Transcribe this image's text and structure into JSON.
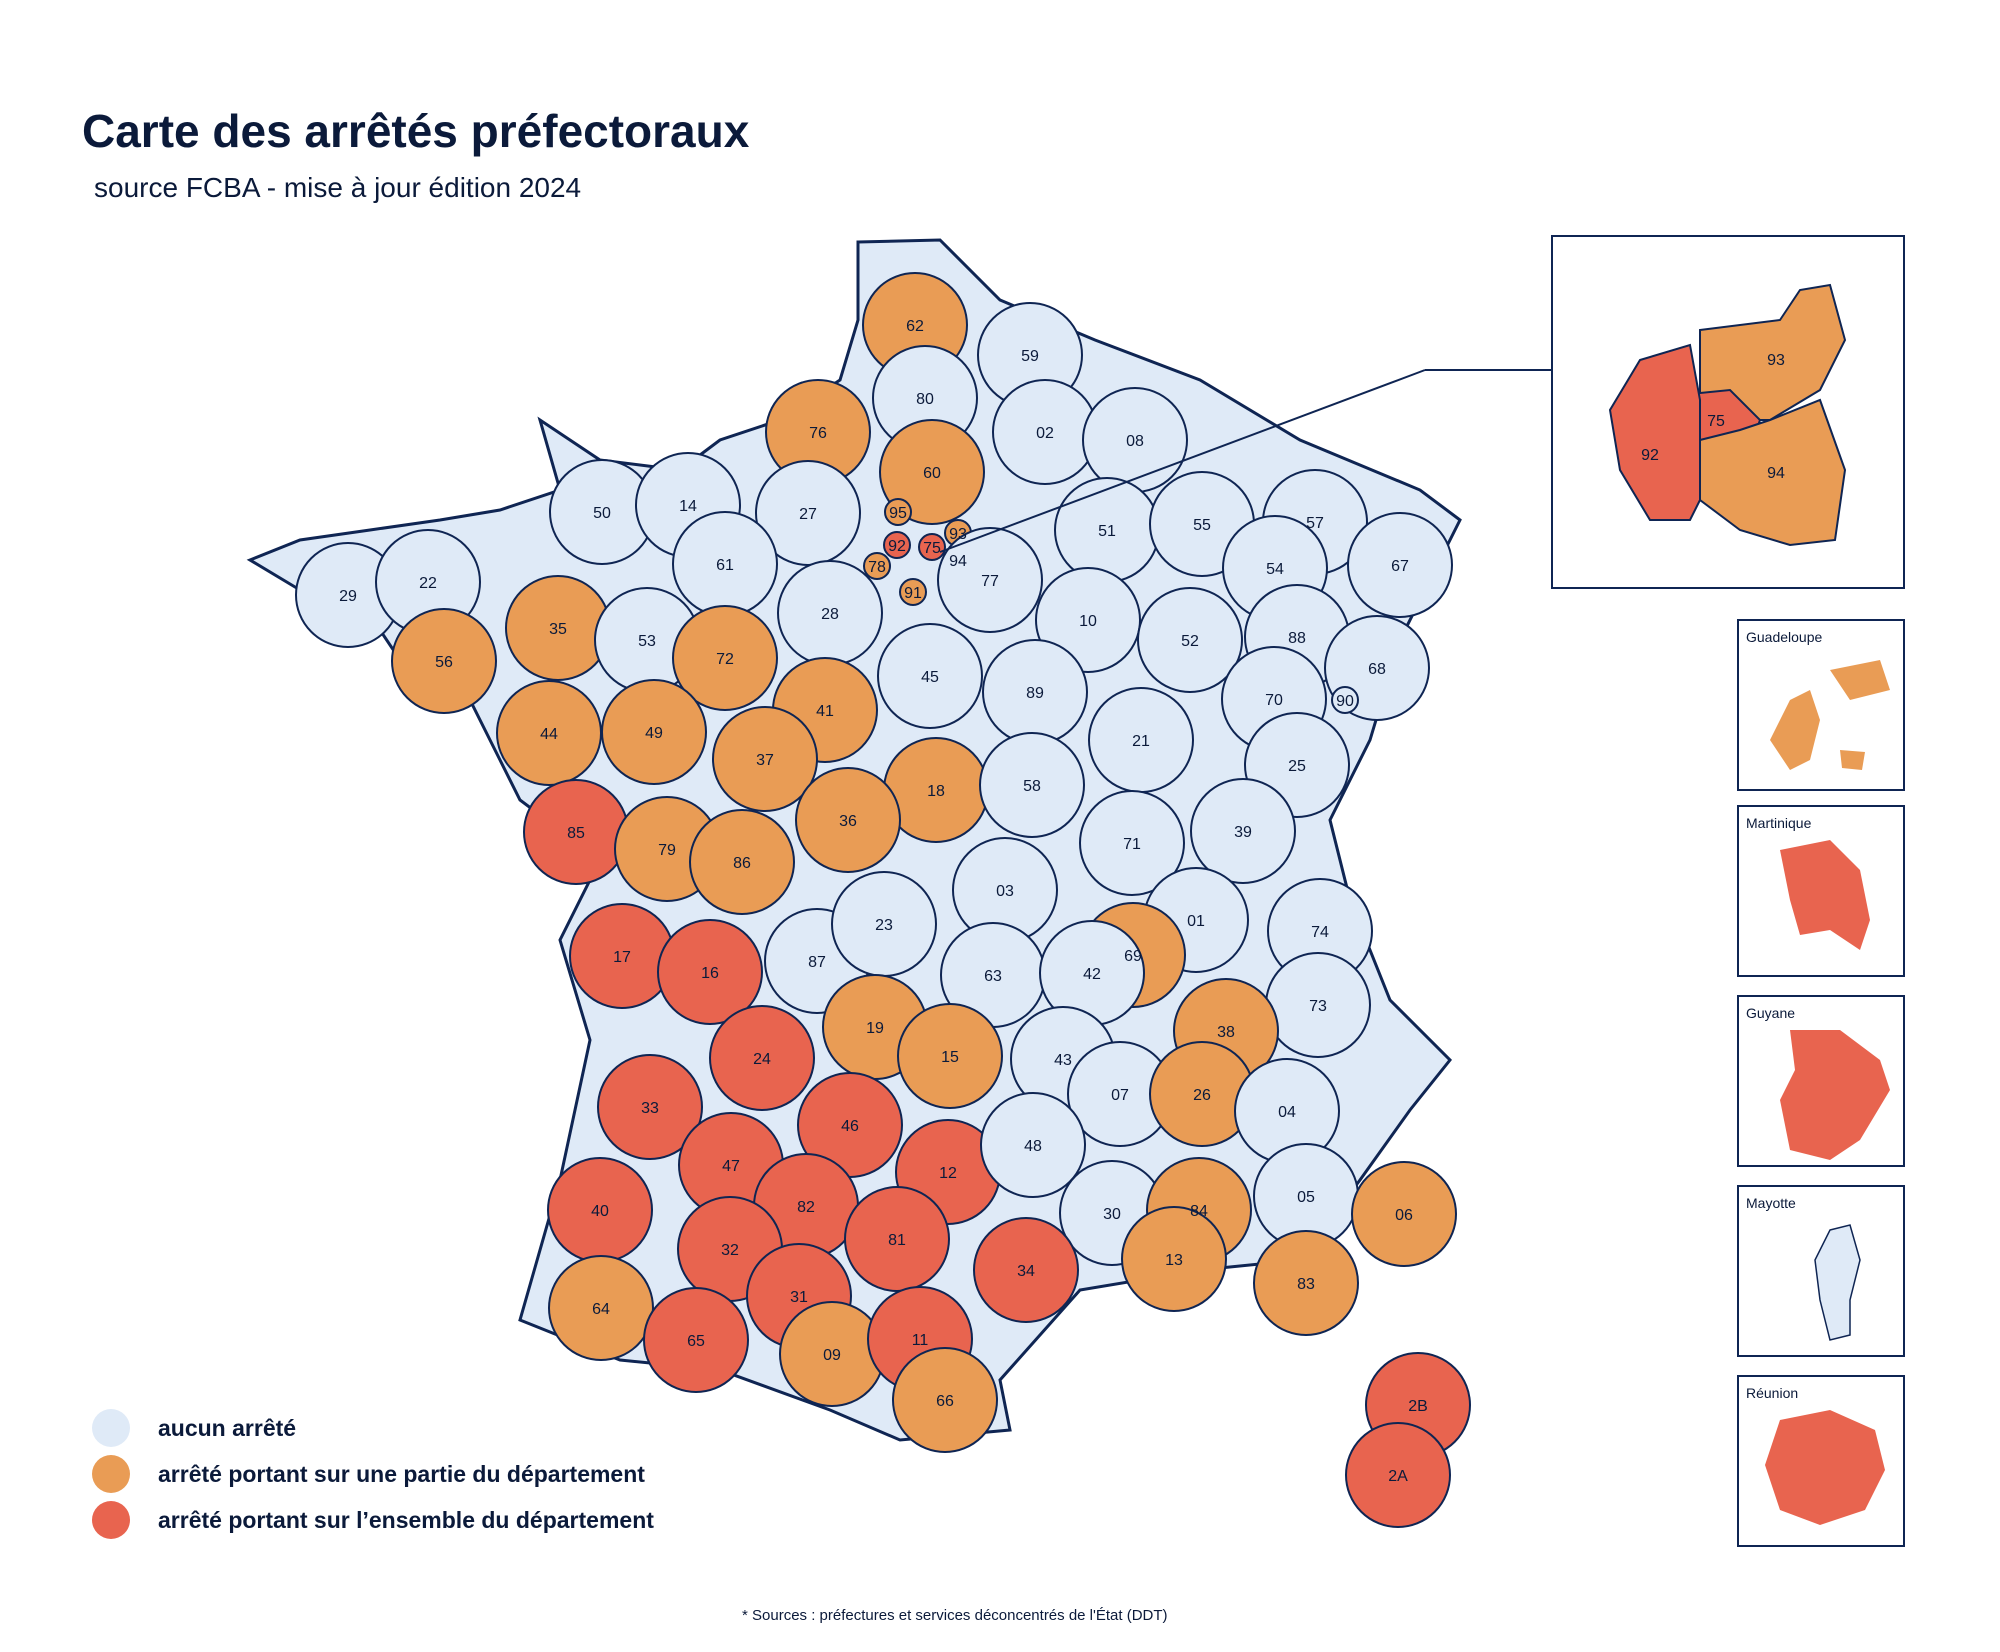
{
  "title": "Carte des arrêtés préfectoraux",
  "subtitle": "source FCBA - mise à jour édition 2024",
  "footnote": "*  Sources : préfectures et services déconcentrés de l'État (DDT)",
  "colors": {
    "none": "#dfeaf7",
    "partial": "#e99c55",
    "full": "#e8644f",
    "border": "#0f2553"
  },
  "legend": [
    {
      "key": "none",
      "label": "aucun arrêté"
    },
    {
      "key": "partial",
      "label": "arrêté portant sur une partie du département"
    },
    {
      "key": "full",
      "label": "arrêté portant sur l’ensemble du département"
    }
  ],
  "departments": [
    {
      "code": "62",
      "status": "partial"
    },
    {
      "code": "59",
      "status": "none"
    },
    {
      "code": "80",
      "status": "none"
    },
    {
      "code": "76",
      "status": "partial"
    },
    {
      "code": "60",
      "status": "partial"
    },
    {
      "code": "02",
      "status": "none"
    },
    {
      "code": "08",
      "status": "none"
    },
    {
      "code": "50",
      "status": "none"
    },
    {
      "code": "14",
      "status": "none"
    },
    {
      "code": "27",
      "status": "none"
    },
    {
      "code": "95",
      "status": "partial"
    },
    {
      "code": "93",
      "status": "partial"
    },
    {
      "code": "92",
      "status": "full"
    },
    {
      "code": "94",
      "status": "partial"
    },
    {
      "code": "75",
      "status": "full"
    },
    {
      "code": "78",
      "status": "partial"
    },
    {
      "code": "91",
      "status": "partial"
    },
    {
      "code": "77",
      "status": "none"
    },
    {
      "code": "51",
      "status": "none"
    },
    {
      "code": "55",
      "status": "none"
    },
    {
      "code": "57",
      "status": "none"
    },
    {
      "code": "54",
      "status": "none"
    },
    {
      "code": "67",
      "status": "none"
    },
    {
      "code": "29",
      "status": "none"
    },
    {
      "code": "22",
      "status": "none"
    },
    {
      "code": "35",
      "status": "partial"
    },
    {
      "code": "56",
      "status": "partial"
    },
    {
      "code": "61",
      "status": "none"
    },
    {
      "code": "53",
      "status": "none"
    },
    {
      "code": "72",
      "status": "partial"
    },
    {
      "code": "28",
      "status": "none"
    },
    {
      "code": "45",
      "status": "none"
    },
    {
      "code": "10",
      "status": "none"
    },
    {
      "code": "52",
      "status": "none"
    },
    {
      "code": "88",
      "status": "none"
    },
    {
      "code": "68",
      "status": "none"
    },
    {
      "code": "90",
      "status": "none"
    },
    {
      "code": "44",
      "status": "partial"
    },
    {
      "code": "49",
      "status": "partial"
    },
    {
      "code": "41",
      "status": "partial"
    },
    {
      "code": "37",
      "status": "partial"
    },
    {
      "code": "18",
      "status": "partial"
    },
    {
      "code": "89",
      "status": "none"
    },
    {
      "code": "21",
      "status": "none"
    },
    {
      "code": "70",
      "status": "none"
    },
    {
      "code": "25",
      "status": "none"
    },
    {
      "code": "85",
      "status": "full"
    },
    {
      "code": "79",
      "status": "partial"
    },
    {
      "code": "86",
      "status": "partial"
    },
    {
      "code": "36",
      "status": "partial"
    },
    {
      "code": "58",
      "status": "none"
    },
    {
      "code": "71",
      "status": "none"
    },
    {
      "code": "39",
      "status": "none"
    },
    {
      "code": "03",
      "status": "none"
    },
    {
      "code": "01",
      "status": "none"
    },
    {
      "code": "74",
      "status": "none"
    },
    {
      "code": "17",
      "status": "full"
    },
    {
      "code": "16",
      "status": "full"
    },
    {
      "code": "87",
      "status": "none"
    },
    {
      "code": "23",
      "status": "none"
    },
    {
      "code": "69",
      "status": "partial"
    },
    {
      "code": "63",
      "status": "none"
    },
    {
      "code": "42",
      "status": "none"
    },
    {
      "code": "73",
      "status": "none"
    },
    {
      "code": "38",
      "status": "partial"
    },
    {
      "code": "24",
      "status": "full"
    },
    {
      "code": "19",
      "status": "partial"
    },
    {
      "code": "15",
      "status": "partial"
    },
    {
      "code": "43",
      "status": "none"
    },
    {
      "code": "07",
      "status": "none"
    },
    {
      "code": "26",
      "status": "partial"
    },
    {
      "code": "33",
      "status": "full"
    },
    {
      "code": "46",
      "status": "full"
    },
    {
      "code": "04",
      "status": "none"
    },
    {
      "code": "47",
      "status": "full"
    },
    {
      "code": "12",
      "status": "full"
    },
    {
      "code": "48",
      "status": "none"
    },
    {
      "code": "05",
      "status": "none"
    },
    {
      "code": "40",
      "status": "full"
    },
    {
      "code": "82",
      "status": "full"
    },
    {
      "code": "30",
      "status": "none"
    },
    {
      "code": "84",
      "status": "partial"
    },
    {
      "code": "06",
      "status": "partial"
    },
    {
      "code": "32",
      "status": "full"
    },
    {
      "code": "81",
      "status": "full"
    },
    {
      "code": "13",
      "status": "partial"
    },
    {
      "code": "34",
      "status": "full"
    },
    {
      "code": "83",
      "status": "partial"
    },
    {
      "code": "31",
      "status": "full"
    },
    {
      "code": "64",
      "status": "partial"
    },
    {
      "code": "65",
      "status": "full"
    },
    {
      "code": "09",
      "status": "partial"
    },
    {
      "code": "11",
      "status": "full"
    },
    {
      "code": "66",
      "status": "partial"
    },
    {
      "code": "2B",
      "status": "full"
    },
    {
      "code": "2A",
      "status": "full"
    }
  ],
  "insets": {
    "paris": [
      {
        "code": "93",
        "status": "partial"
      },
      {
        "code": "75",
        "status": "full"
      },
      {
        "code": "92",
        "status": "full"
      },
      {
        "code": "94",
        "status": "partial"
      }
    ],
    "overseas": [
      {
        "name": "Guadeloupe",
        "status": "partial"
      },
      {
        "name": "Martinique",
        "status": "full"
      },
      {
        "name": "Guyane",
        "status": "full"
      },
      {
        "name": "Mayotte",
        "status": "none"
      },
      {
        "name": "Réunion",
        "status": "full"
      }
    ]
  }
}
